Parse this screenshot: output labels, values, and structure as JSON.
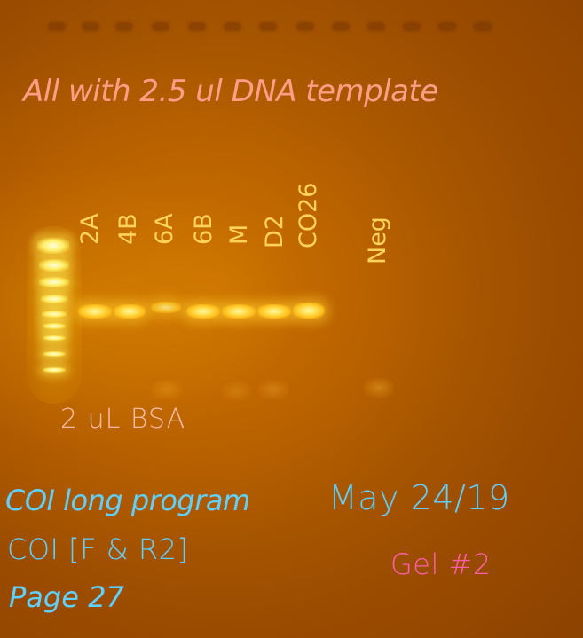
{
  "annotations": {
    "title": "All with 2.5 ul DNA template",
    "bsa": "2 uL BSA",
    "program": "COI long program",
    "primers": "COI [F & R2]",
    "page": "Page 27",
    "date": "May 24/19",
    "gel": "Gel #2"
  },
  "lanes": [
    {
      "label": "2A",
      "band": "strong"
    },
    {
      "label": "4B",
      "band": "strong"
    },
    {
      "label": "6A",
      "band": "medium"
    },
    {
      "label": "6B",
      "band": "strong"
    },
    {
      "label": "M",
      "band": "strong"
    },
    {
      "label": "D2",
      "band": "strong"
    },
    {
      "label": "CO26",
      "band": "strong"
    },
    {
      "label": "Neg",
      "band": "none"
    }
  ],
  "colors": {
    "gel_background": "#b05c00",
    "band": "#ffe25a",
    "annotation_pink": "#ff9e86",
    "annotation_yellow": "#ffd25a",
    "annotation_blue": "#5fd0ff",
    "annotation_magenta": "#ff5fa8"
  }
}
